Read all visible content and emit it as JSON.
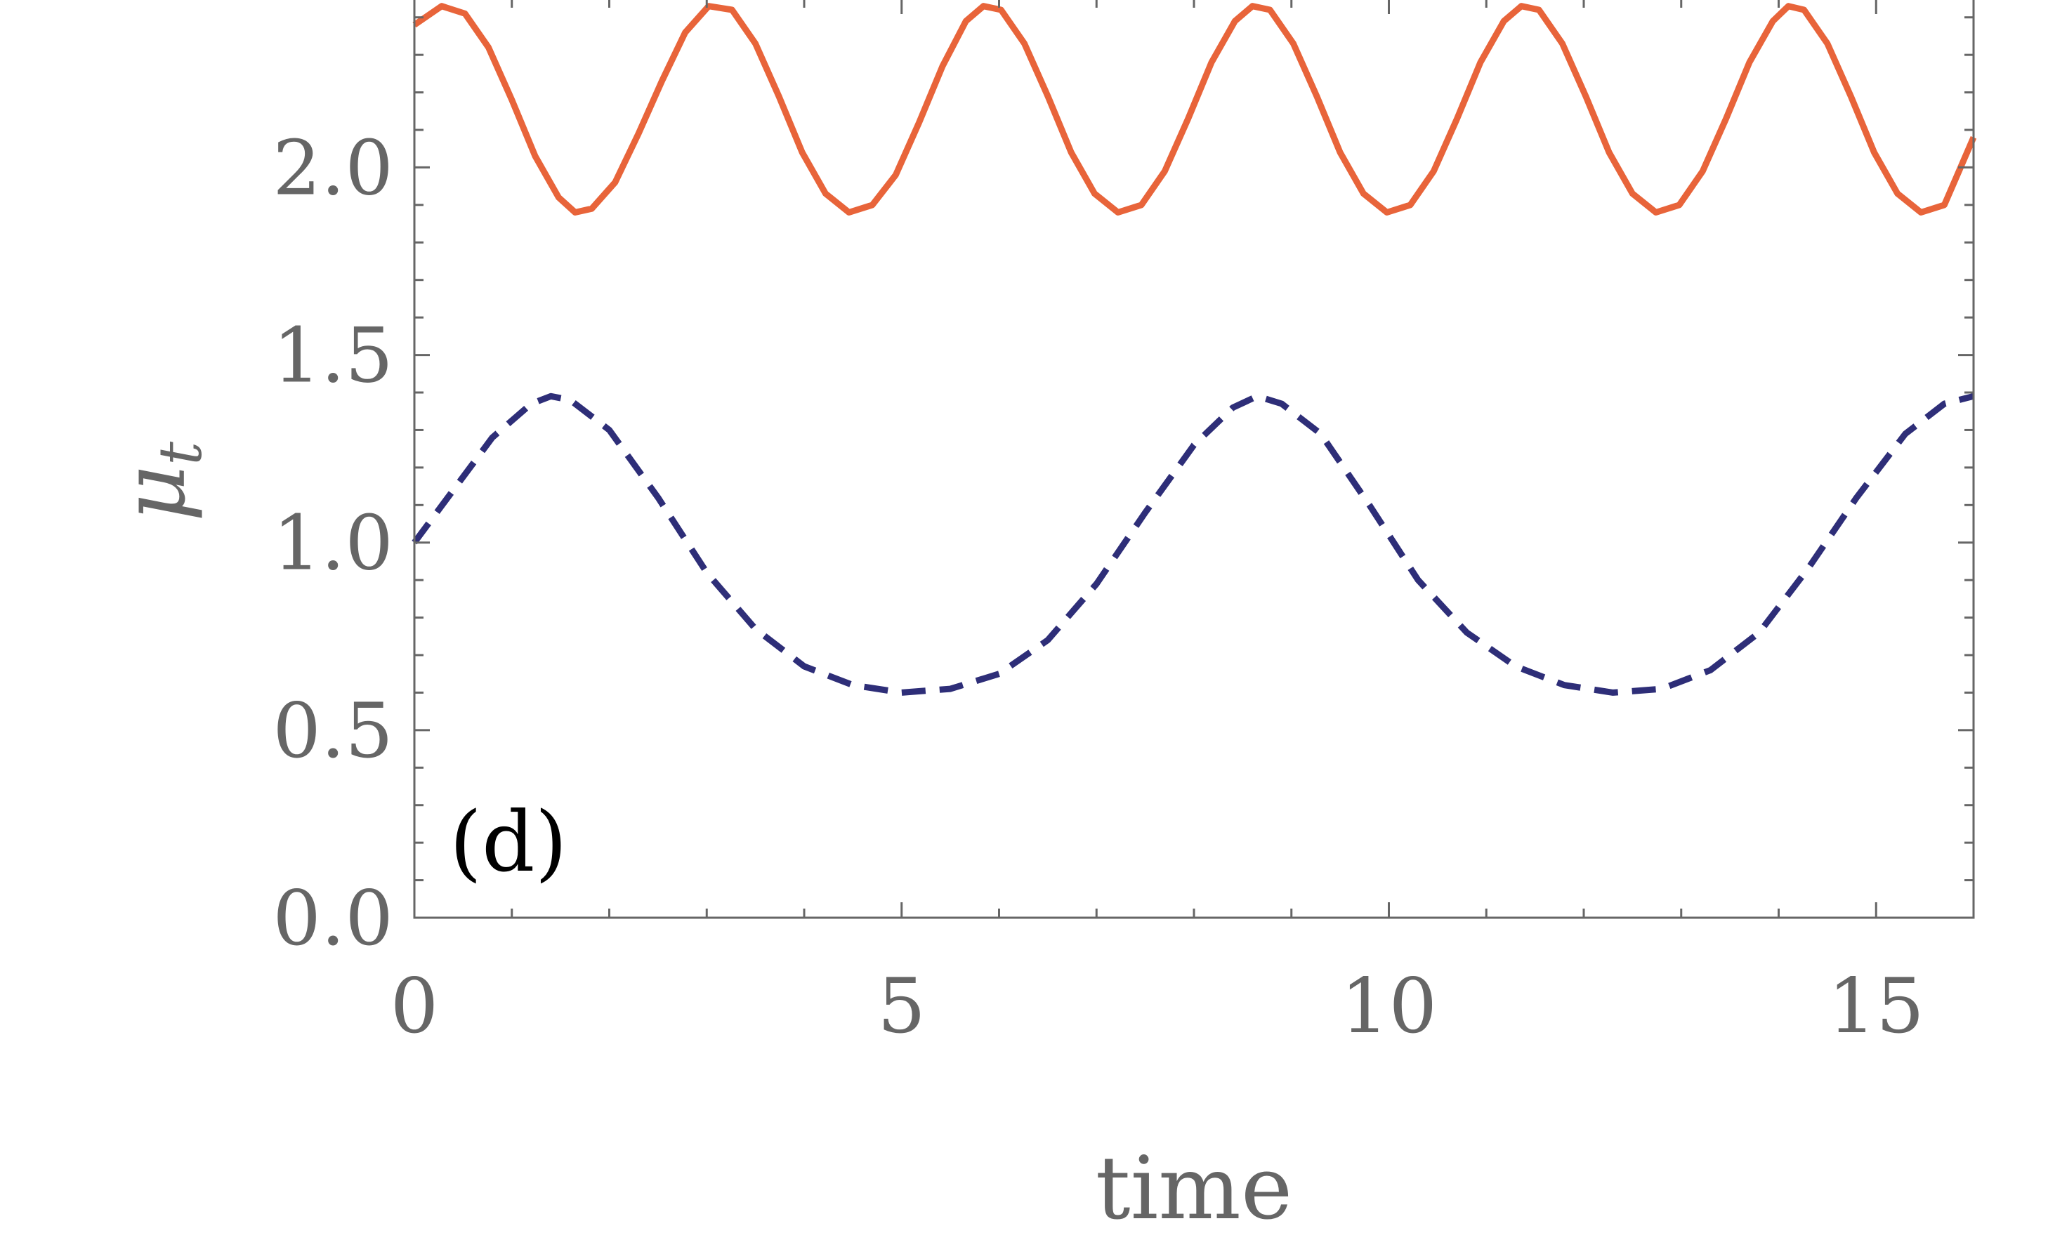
{
  "chart_data": {
    "type": "line",
    "title": "",
    "xlabel": "time",
    "ylabel": "μ",
    "ylabel_subscript": "t",
    "panel_label": "(d)",
    "xlim": [
      0,
      16
    ],
    "ylim": [
      0,
      2.45
    ],
    "x_ticks": [
      0,
      5,
      10,
      15
    ],
    "x_tick_labels": [
      "0",
      "5",
      "10",
      "15"
    ],
    "y_ticks": [
      0.0,
      0.5,
      1.0,
      1.5,
      2.0
    ],
    "y_tick_labels": [
      "0.0",
      "0.5",
      "1.0",
      "1.5",
      "2.0"
    ],
    "grid": false,
    "legend": "none",
    "series": [
      {
        "style": "solid",
        "color": "#E8643A",
        "x": [
          0,
          0.28,
          0.52,
          0.76,
          1.0,
          1.24,
          1.48,
          1.65,
          1.82,
          2.06,
          2.3,
          2.54,
          2.78,
          3.02,
          3.26,
          3.5,
          3.74,
          3.98,
          4.22,
          4.46,
          4.7,
          4.94,
          5.18,
          5.42,
          5.66,
          5.84,
          6.02,
          6.26,
          6.5,
          6.74,
          6.98,
          7.22,
          7.46,
          7.7,
          7.94,
          8.18,
          8.42,
          8.6,
          8.78,
          9.02,
          9.26,
          9.5,
          9.74,
          9.98,
          10.22,
          10.46,
          10.7,
          10.94,
          11.18,
          11.36,
          11.54,
          11.78,
          12.02,
          12.26,
          12.5,
          12.74,
          12.98,
          13.22,
          13.46,
          13.7,
          13.94,
          14.1,
          14.26,
          14.5,
          14.74,
          14.98,
          15.22,
          15.46,
          15.7,
          16.0
        ],
        "y": [
          2.38,
          2.43,
          2.41,
          2.32,
          2.18,
          2.03,
          1.92,
          1.88,
          1.89,
          1.96,
          2.09,
          2.23,
          2.36,
          2.43,
          2.42,
          2.33,
          2.19,
          2.04,
          1.93,
          1.88,
          1.9,
          1.98,
          2.12,
          2.27,
          2.39,
          2.43,
          2.42,
          2.33,
          2.19,
          2.04,
          1.93,
          1.88,
          1.9,
          1.99,
          2.13,
          2.28,
          2.39,
          2.43,
          2.42,
          2.33,
          2.19,
          2.04,
          1.93,
          1.88,
          1.9,
          1.99,
          2.13,
          2.28,
          2.39,
          2.43,
          2.42,
          2.33,
          2.19,
          2.04,
          1.93,
          1.88,
          1.9,
          1.99,
          2.13,
          2.28,
          2.39,
          2.43,
          2.42,
          2.33,
          2.19,
          2.04,
          1.93,
          1.88,
          1.9,
          2.08
        ]
      },
      {
        "style": "dashed",
        "color": "#2E2E78",
        "x": [
          0,
          0.4,
          0.8,
          1.2,
          1.4,
          1.6,
          2.0,
          2.5,
          3.0,
          3.5,
          4.0,
          4.5,
          5.0,
          5.5,
          6.0,
          6.5,
          7.0,
          7.5,
          8.0,
          8.4,
          8.65,
          8.9,
          9.3,
          9.8,
          10.3,
          10.8,
          11.3,
          11.8,
          12.3,
          12.8,
          13.3,
          13.8,
          14.3,
          14.8,
          15.3,
          15.7,
          16.0
        ],
        "y": [
          1.0,
          1.14,
          1.28,
          1.37,
          1.39,
          1.38,
          1.3,
          1.12,
          0.92,
          0.77,
          0.67,
          0.62,
          0.6,
          0.61,
          0.65,
          0.74,
          0.89,
          1.08,
          1.26,
          1.36,
          1.39,
          1.37,
          1.29,
          1.1,
          0.9,
          0.76,
          0.67,
          0.62,
          0.6,
          0.61,
          0.66,
          0.76,
          0.93,
          1.12,
          1.29,
          1.37,
          1.39
        ]
      }
    ]
  }
}
